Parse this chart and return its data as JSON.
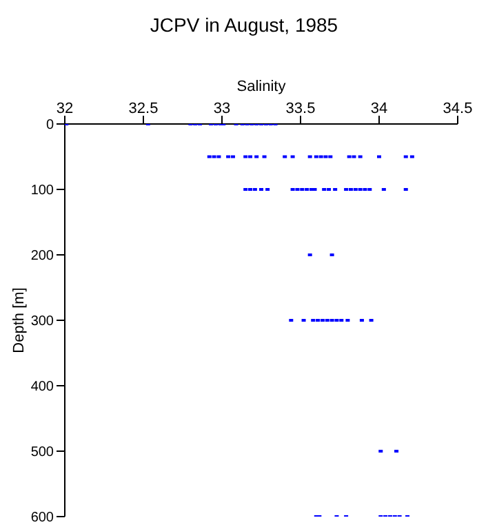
{
  "chart_data": {
    "type": "scatter",
    "title": "JCPV in August, 1985",
    "xlabel": "Salinity",
    "ylabel": "Depth [m]",
    "xlim": [
      32,
      34.5
    ],
    "xticks": [
      32,
      32.5,
      33,
      33.5,
      34,
      34.5
    ],
    "ylim": [
      600,
      0
    ],
    "yticks": [
      0,
      100,
      200,
      300,
      400,
      500,
      600
    ],
    "marker": "square",
    "series": [
      {
        "color": "#0000ff",
        "x": [
          32.01,
          32.53,
          32.8,
          32.83,
          32.86,
          32.93,
          32.96,
          32.99,
          33.01,
          33.09,
          33.13,
          33.16,
          33.19,
          33.22,
          33.25,
          33.28,
          33.31,
          33.34,
          32.92,
          32.95,
          32.98,
          33.04,
          33.07,
          33.15,
          33.18,
          33.22,
          33.27,
          33.4,
          33.45,
          33.56,
          33.6,
          33.63,
          33.66,
          33.69,
          33.81,
          33.84,
          33.88,
          34.0,
          34.17,
          34.21,
          33.15,
          33.18,
          33.21,
          33.25,
          33.29,
          33.45,
          33.48,
          33.51,
          33.54,
          33.57,
          33.59,
          33.65,
          33.68,
          33.72,
          33.79,
          33.82,
          33.85,
          33.88,
          33.91,
          33.94,
          34.03,
          34.17,
          33.56,
          33.7,
          33.44,
          33.52,
          33.58,
          33.61,
          33.64,
          33.67,
          33.7,
          33.73,
          33.76,
          33.8,
          33.89,
          33.95,
          34.01,
          34.11,
          33.6,
          33.62,
          33.73,
          33.79,
          34.01,
          34.04,
          34.07,
          34.1,
          34.13,
          34.18
        ],
        "values": [
          0,
          0,
          0,
          0,
          0,
          0,
          0,
          0,
          0,
          0,
          0,
          0,
          0,
          0,
          0,
          0,
          0,
          0,
          50,
          50,
          50,
          50,
          50,
          50,
          50,
          50,
          50,
          50,
          50,
          50,
          50,
          50,
          50,
          50,
          50,
          50,
          50,
          50,
          50,
          50,
          100,
          100,
          100,
          100,
          100,
          100,
          100,
          100,
          100,
          100,
          100,
          100,
          100,
          100,
          100,
          100,
          100,
          100,
          100,
          100,
          100,
          100,
          200,
          200,
          300,
          300,
          300,
          300,
          300,
          300,
          300,
          300,
          300,
          300,
          300,
          300,
          500,
          500,
          600,
          600,
          600,
          600,
          600,
          600,
          600,
          600,
          600,
          600
        ]
      }
    ]
  }
}
